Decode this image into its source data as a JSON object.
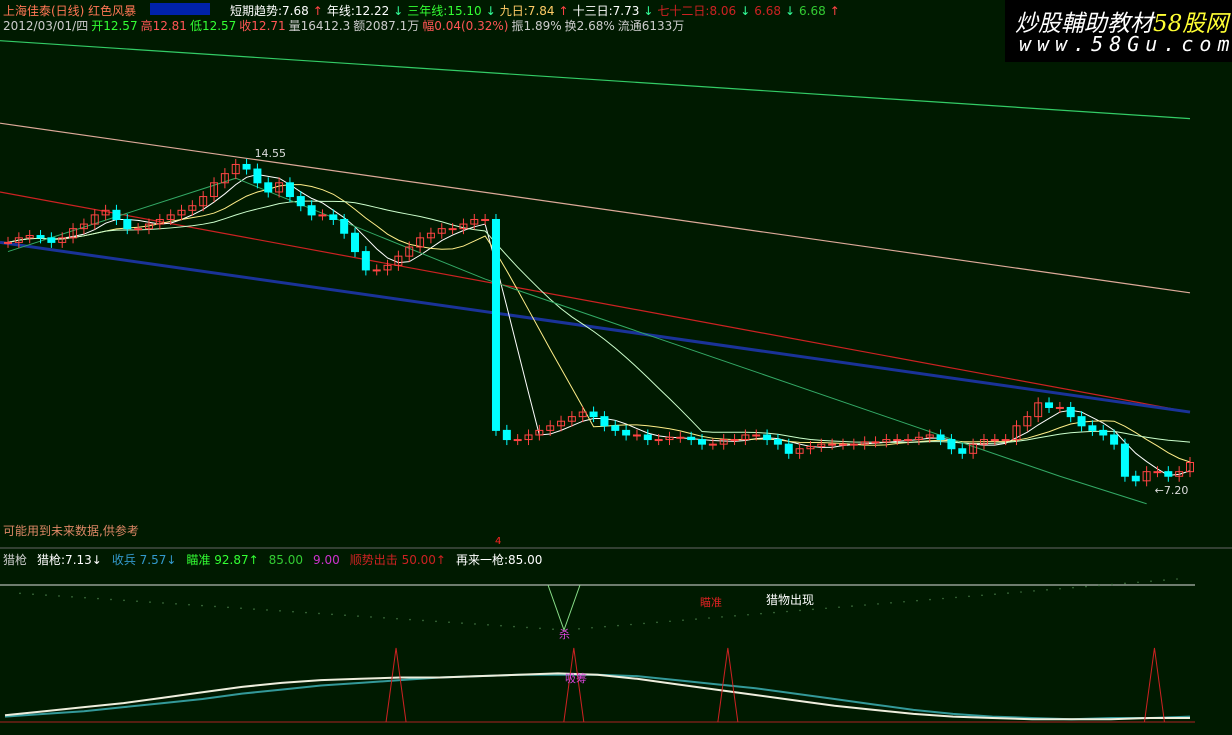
{
  "header": {
    "title": "上海佳泰(日线) 红色风暴",
    "indicators": [
      {
        "label": "短期趋势:7.68",
        "color": "#ffffff",
        "arrow": "↑"
      },
      {
        "label": "年线:12.22",
        "color": "#ffffff",
        "arrow": "↓"
      },
      {
        "label": "三年线:15.10",
        "color": "#33ff33",
        "arrow": "↓"
      },
      {
        "label": "九日:7.84",
        "color": "#ffcc66",
        "arrow": "↑"
      },
      {
        "label": "十三日:7.73",
        "color": "#ffffff",
        "arrow": "↓"
      },
      {
        "label": "七十二日:8.06",
        "color": "#cc2222",
        "arrow": "↓"
      },
      {
        "label": "6.68",
        "color": "#cc2222",
        "arrow": "↓"
      },
      {
        "label": "6.68",
        "color": "#33cc33",
        "arrow": "↑"
      }
    ],
    "quote": [
      {
        "text": "2012/03/01/四",
        "color": "#cccccc"
      },
      {
        "text": "开12.57",
        "color": "#33ff33"
      },
      {
        "text": "高12.81",
        "color": "#ff5555"
      },
      {
        "text": "低12.57",
        "color": "#33ff33"
      },
      {
        "text": "收12.71",
        "color": "#ff5555"
      },
      {
        "text": "量16412.3",
        "color": "#cccccc"
      },
      {
        "text": "额2087.1万",
        "color": "#cccccc"
      },
      {
        "text": "幅0.04(0.32%)",
        "color": "#ff5555"
      },
      {
        "text": "振1.89%",
        "color": "#cccccc"
      },
      {
        "text": "换2.68%",
        "color": "#cccccc"
      },
      {
        "text": "流通6133万",
        "color": "#cccccc"
      }
    ]
  },
  "watermark": {
    "line1": "炒股輔助教材",
    "line1b": "58股网",
    "line2": "www.58Gu.com"
  },
  "note": "可能用到未来数据,供参考",
  "lower_header": [
    {
      "text": "猎枪",
      "color": "#cccccc"
    },
    {
      "text": "猎枪:7.13↓",
      "color": "#ffffff"
    },
    {
      "text": "收兵 7.57↓",
      "color": "#3399cc"
    },
    {
      "text": "瞄准 92.87↑",
      "color": "#33ff33"
    },
    {
      "text": "85.00",
      "color": "#33cc33"
    },
    {
      "text": "9.00",
      "color": "#cc33cc"
    },
    {
      "text": "顺势出击 50.00↑",
      "color": "#cc2222"
    },
    {
      "text": "再来一枪:85.00",
      "color": "#ffffff"
    }
  ],
  "lower_labels": {
    "aim": "瞄准",
    "prey": "猎物出现",
    "kill": "杀",
    "accum": "吸筹",
    "marker": "4"
  },
  "chart_data": {
    "type": "candlestick",
    "price_range": [
      6.0,
      17.2
    ],
    "annotations": [
      {
        "text": "14.55",
        "index": 22
      },
      {
        "text": "←7.20",
        "index": 105
      }
    ],
    "closes": [
      12.6,
      12.7,
      12.75,
      12.7,
      12.6,
      12.7,
      12.9,
      13.0,
      13.2,
      13.3,
      13.1,
      12.9,
      12.9,
      13.0,
      13.1,
      13.2,
      13.3,
      13.4,
      13.6,
      13.9,
      14.1,
      14.3,
      14.2,
      13.9,
      13.7,
      13.9,
      13.6,
      13.4,
      13.2,
      13.2,
      13.1,
      12.8,
      12.4,
      12.0,
      12.0,
      12.1,
      12.3,
      12.5,
      12.7,
      12.8,
      12.9,
      12.9,
      13.0,
      13.1,
      13.1,
      8.5,
      8.3,
      8.3,
      8.4,
      8.5,
      8.6,
      8.7,
      8.8,
      8.9,
      8.8,
      8.6,
      8.5,
      8.4,
      8.4,
      8.3,
      8.3,
      8.35,
      8.35,
      8.3,
      8.2,
      8.2,
      8.3,
      8.3,
      8.4,
      8.4,
      8.3,
      8.2,
      8.0,
      8.1,
      8.15,
      8.2,
      8.2,
      8.2,
      8.2,
      8.25,
      8.25,
      8.3,
      8.3,
      8.3,
      8.35,
      8.4,
      8.3,
      8.1,
      8.0,
      8.2,
      8.3,
      8.3,
      8.3,
      8.6,
      8.8,
      9.1,
      9.0,
      9.0,
      8.8,
      8.6,
      8.5,
      8.4,
      8.2,
      7.5,
      7.4,
      7.6,
      7.6,
      7.5,
      7.6,
      7.8
    ],
    "lines": [
      {
        "name": "三年线",
        "color": "#33cc66",
        "from": 17.0,
        "to": 15.3
      },
      {
        "name": "年线",
        "color": "#ddaa99",
        "from": 15.2,
        "to": 11.5
      },
      {
        "name": "七十二日",
        "color": "#cc2222",
        "from": 13.7,
        "to": 8.9
      },
      {
        "name": "",
        "color": "#1a3399",
        "from": 12.6,
        "to": 8.9
      }
    ],
    "lower": {
      "range": [
        0,
        100
      ],
      "white": [
        5,
        8,
        11,
        14,
        18,
        22,
        26,
        29,
        31,
        32,
        33,
        33,
        34,
        35,
        36,
        35,
        32,
        28,
        24,
        20,
        16,
        12,
        9,
        6,
        4,
        3,
        2,
        2,
        2,
        3,
        3
      ],
      "teal": [
        4,
        6,
        8,
        11,
        14,
        17,
        21,
        24,
        27,
        29,
        31,
        33,
        34,
        35,
        35,
        35,
        34,
        31,
        28,
        25,
        21,
        17,
        13,
        9,
        6,
        4,
        3,
        2,
        3,
        3,
        4
      ],
      "spikes": [
        0.33,
        0.48,
        0.61,
        0.97
      ]
    }
  }
}
